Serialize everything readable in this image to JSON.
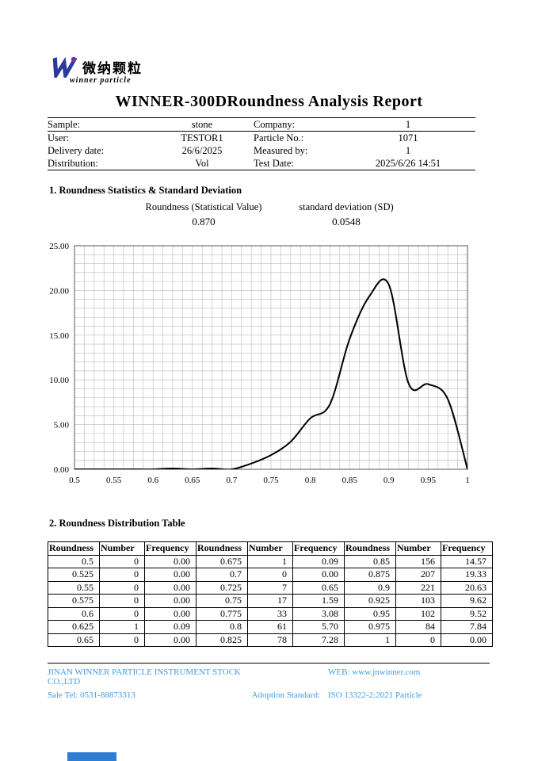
{
  "logo": {
    "cn": "微纳颗粒",
    "en": "winner particle"
  },
  "title": "WINNER-300DRoundness Analysis Report",
  "info": {
    "rows": [
      {
        "l1": "Sample:",
        "v1": "stone",
        "l2": "Company:",
        "v2": "1"
      },
      {
        "l1": "User:",
        "v1": "TESTOR1",
        "l2": "Particle No.:",
        "v2": "1071"
      },
      {
        "l1": "Delivery date:",
        "v1": "26/6/2025",
        "l2": "Measured by:",
        "v2": "1"
      },
      {
        "l1": "Distribution:",
        "v1": "Vol",
        "l2": "Test Date:",
        "v2": "2025/6/26 14:51"
      }
    ]
  },
  "stats": {
    "heading": "1. Roundness Statistics & Standard Deviation",
    "roundness_label": "Roundness (Statistical Value)",
    "roundness_value": "0.870",
    "sd_label": "standard deviation (SD)",
    "sd_value": "0.0548"
  },
  "chart_data": {
    "type": "line",
    "title": "",
    "xlabel": "",
    "ylabel": "",
    "xlim": [
      0.5,
      1
    ],
    "ylim": [
      0,
      25
    ],
    "x": [
      0.5,
      0.525,
      0.55,
      0.575,
      0.6,
      0.625,
      0.65,
      0.675,
      0.7,
      0.725,
      0.75,
      0.775,
      0.8,
      0.825,
      0.85,
      0.875,
      0.9,
      0.925,
      0.95,
      0.975,
      1
    ],
    "values": [
      0,
      0,
      0,
      0,
      0,
      0.09,
      0,
      0.09,
      0,
      0.65,
      1.59,
      3.08,
      5.7,
      7.28,
      14.57,
      19.33,
      20.63,
      9.62,
      9.52,
      7.84,
      0
    ],
    "x_ticks": [
      "0.5",
      "0.55",
      "0.6",
      "0.65",
      "0.7",
      "0.75",
      "0.8",
      "0.85",
      "0.9",
      "0.95",
      "1"
    ],
    "y_ticks": [
      "0.00",
      "5.00",
      "10.00",
      "15.00",
      "20.00",
      "25.00"
    ],
    "grid": true,
    "minor_x_step": 0.0125,
    "minor_y_step": 1,
    "line_color": "#000000",
    "grid_color": "#bbbbbb"
  },
  "table": {
    "heading": "2. Roundness Distribution Table",
    "headers": [
      "Roundness",
      "Number",
      "Frequency",
      "Roundness",
      "Number",
      "Frequency",
      "Roundness",
      "Number",
      "Frequency"
    ],
    "rows": [
      [
        "0.5",
        "0",
        "0.00",
        "0.675",
        "1",
        "0.09",
        "0.85",
        "156",
        "14.57"
      ],
      [
        "0.525",
        "0",
        "0.00",
        "0.7",
        "0",
        "0.00",
        "0.875",
        "207",
        "19.33"
      ],
      [
        "0.55",
        "0",
        "0.00",
        "0.725",
        "7",
        "0.65",
        "0.9",
        "221",
        "20.63"
      ],
      [
        "0.575",
        "0",
        "0.00",
        "0.75",
        "17",
        "1.59",
        "0.925",
        "103",
        "9.62"
      ],
      [
        "0.6",
        "0",
        "0.00",
        "0.775",
        "33",
        "3.08",
        "0.95",
        "102",
        "9.52"
      ],
      [
        "0.625",
        "1",
        "0.09",
        "0.8",
        "61",
        "5.70",
        "0.975",
        "84",
        "7.84"
      ],
      [
        "0.65",
        "0",
        "0.00",
        "0.825",
        "78",
        "7.28",
        "1",
        "0",
        "0.00"
      ]
    ]
  },
  "footer": {
    "company": "JINAN WINNER PARTICLE INSTRUMENT STOCK CO.,LTD",
    "web": "WEB: www.jnwinner.com",
    "tel": "Sale Tel: 0531-88873313",
    "adoption": "Adoption Standard:",
    "standard": "ISO 13322-2:2021 Particle",
    "accent_color": "#3f9ce8",
    "bar_color": "#2d7dd2"
  }
}
